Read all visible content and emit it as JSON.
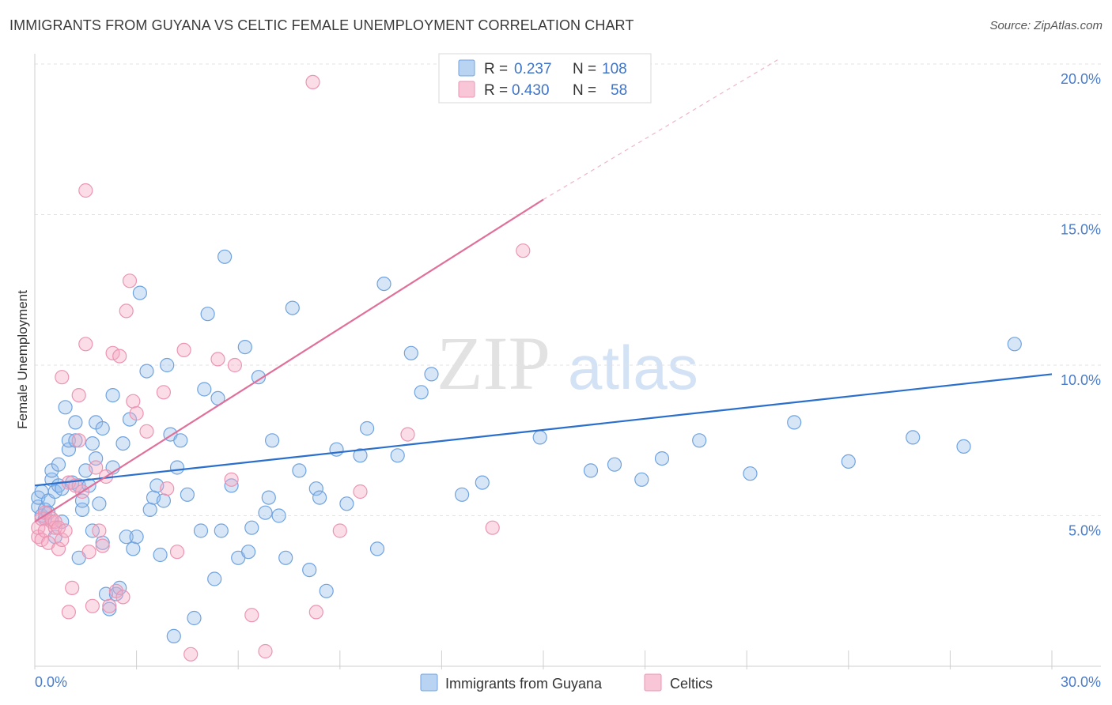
{
  "title": "IMMIGRANTS FROM GUYANA VS CELTIC FEMALE UNEMPLOYMENT CORRELATION CHART",
  "source": "Source: ZipAtlas.com",
  "watermark": {
    "zip": "ZIP",
    "atlas": "atlas"
  },
  "legend": {
    "rows": [
      {
        "r_label": "R =",
        "r_value": "0.237",
        "n_label": "N =",
        "n_value": "108"
      },
      {
        "r_label": "R =",
        "r_value": "0.430",
        "n_label": "N =",
        "n_value": "58"
      }
    ]
  },
  "bottom_legend": [
    "Immigrants from Guyana",
    "Celtics"
  ],
  "chart_data": {
    "type": "scatter",
    "title": "IMMIGRANTS FROM GUYANA VS CELTIC FEMALE UNEMPLOYMENT CORRELATION CHART",
    "xlabel": "",
    "ylabel": "Female Unemployment",
    "xlim": [
      0,
      30
    ],
    "ylim": [
      0,
      20
    ],
    "x_tick_labels": [
      {
        "value": 0,
        "label": "0.0%"
      },
      {
        "value": 30,
        "label": "30.0%"
      }
    ],
    "y_tick_labels": [
      {
        "value": 5,
        "label": "5.0%"
      },
      {
        "value": 10,
        "label": "10.0%"
      },
      {
        "value": 15,
        "label": "15.0%"
      },
      {
        "value": 20,
        "label": "20.0%"
      }
    ],
    "colors": {
      "blue": "#7fb0e8",
      "blue_line": "#2a6fcc",
      "pink": "#f2a8c0",
      "pink_line": "#e0709a"
    },
    "series": [
      {
        "name": "Immigrants from Guyana",
        "color": "blue",
        "trend": {
          "x0": 0,
          "y0": 6.0,
          "x1": 30,
          "y1": 9.7
        },
        "points": [
          [
            0.1,
            5.3
          ],
          [
            0.1,
            5.6
          ],
          [
            0.2,
            5.0
          ],
          [
            0.2,
            5.8
          ],
          [
            0.3,
            5.2
          ],
          [
            0.3,
            4.9
          ],
          [
            0.4,
            5.5
          ],
          [
            0.4,
            5.1
          ],
          [
            0.5,
            6.2
          ],
          [
            0.5,
            6.5
          ],
          [
            0.6,
            5.8
          ],
          [
            0.6,
            4.3
          ],
          [
            0.7,
            6.7
          ],
          [
            0.7,
            6.0
          ],
          [
            0.8,
            4.8
          ],
          [
            0.8,
            5.9
          ],
          [
            0.9,
            8.6
          ],
          [
            1.0,
            7.2
          ],
          [
            1.0,
            7.5
          ],
          [
            1.1,
            6.1
          ],
          [
            1.2,
            7.5
          ],
          [
            1.2,
            8.1
          ],
          [
            1.3,
            6.0
          ],
          [
            1.3,
            3.6
          ],
          [
            1.4,
            5.2
          ],
          [
            1.4,
            5.5
          ],
          [
            1.5,
            6.5
          ],
          [
            1.6,
            6.0
          ],
          [
            1.7,
            4.5
          ],
          [
            1.7,
            7.4
          ],
          [
            1.8,
            6.9
          ],
          [
            1.8,
            8.1
          ],
          [
            1.9,
            5.4
          ],
          [
            2.0,
            4.1
          ],
          [
            2.0,
            7.9
          ],
          [
            2.1,
            2.4
          ],
          [
            2.2,
            1.9
          ],
          [
            2.3,
            6.6
          ],
          [
            2.3,
            9.0
          ],
          [
            2.4,
            2.4
          ],
          [
            2.5,
            2.6
          ],
          [
            2.6,
            7.4
          ],
          [
            2.7,
            4.3
          ],
          [
            2.8,
            8.2
          ],
          [
            2.9,
            3.9
          ],
          [
            3.0,
            4.3
          ],
          [
            3.1,
            12.4
          ],
          [
            3.3,
            9.8
          ],
          [
            3.4,
            5.2
          ],
          [
            3.5,
            5.6
          ],
          [
            3.6,
            6.0
          ],
          [
            3.7,
            3.7
          ],
          [
            3.8,
            5.5
          ],
          [
            3.9,
            10.0
          ],
          [
            4.0,
            7.7
          ],
          [
            4.1,
            1.0
          ],
          [
            4.2,
            6.6
          ],
          [
            4.3,
            7.5
          ],
          [
            4.5,
            5.7
          ],
          [
            4.7,
            1.6
          ],
          [
            4.9,
            4.5
          ],
          [
            5.0,
            9.2
          ],
          [
            5.1,
            11.7
          ],
          [
            5.3,
            2.9
          ],
          [
            5.4,
            8.9
          ],
          [
            5.5,
            4.5
          ],
          [
            5.6,
            13.6
          ],
          [
            5.8,
            6.0
          ],
          [
            6.0,
            3.6
          ],
          [
            6.2,
            10.6
          ],
          [
            6.3,
            3.8
          ],
          [
            6.4,
            4.6
          ],
          [
            6.6,
            9.6
          ],
          [
            6.8,
            5.1
          ],
          [
            6.9,
            5.6
          ],
          [
            7.0,
            7.5
          ],
          [
            7.2,
            5.0
          ],
          [
            7.4,
            3.6
          ],
          [
            7.6,
            11.9
          ],
          [
            7.8,
            6.5
          ],
          [
            8.1,
            3.2
          ],
          [
            8.3,
            5.9
          ],
          [
            8.4,
            5.6
          ],
          [
            8.6,
            2.5
          ],
          [
            8.9,
            7.2
          ],
          [
            9.2,
            5.4
          ],
          [
            9.6,
            7.0
          ],
          [
            9.8,
            7.9
          ],
          [
            10.1,
            3.9
          ],
          [
            10.3,
            12.7
          ],
          [
            10.7,
            7.0
          ],
          [
            11.1,
            10.4
          ],
          [
            11.4,
            9.1
          ],
          [
            11.7,
            9.7
          ],
          [
            12.6,
            5.7
          ],
          [
            13.2,
            6.1
          ],
          [
            14.9,
            7.6
          ],
          [
            16.4,
            6.5
          ],
          [
            17.1,
            6.7
          ],
          [
            17.9,
            6.2
          ],
          [
            18.5,
            6.9
          ],
          [
            19.6,
            7.5
          ],
          [
            21.1,
            6.4
          ],
          [
            22.4,
            8.1
          ],
          [
            24.0,
            6.8
          ],
          [
            25.9,
            7.6
          ],
          [
            27.4,
            7.3
          ],
          [
            28.9,
            10.7
          ]
        ]
      },
      {
        "name": "Celtics",
        "color": "pink",
        "trend": {
          "x0": 0,
          "y0": 4.8,
          "x1": 15,
          "y1": 15.5,
          "dash_x1": 22,
          "dash_y1": 20.2
        },
        "points": [
          [
            0.1,
            4.3
          ],
          [
            0.1,
            4.6
          ],
          [
            0.2,
            4.9
          ],
          [
            0.2,
            4.2
          ],
          [
            0.3,
            5.1
          ],
          [
            0.3,
            4.5
          ],
          [
            0.4,
            4.1
          ],
          [
            0.5,
            4.8
          ],
          [
            0.5,
            4.9
          ],
          [
            0.6,
            4.6
          ],
          [
            0.6,
            4.8
          ],
          [
            0.7,
            3.9
          ],
          [
            0.7,
            4.6
          ],
          [
            0.8,
            4.2
          ],
          [
            0.8,
            9.6
          ],
          [
            0.9,
            4.5
          ],
          [
            1.0,
            6.1
          ],
          [
            1.0,
            1.8
          ],
          [
            1.1,
            2.6
          ],
          [
            1.2,
            6.0
          ],
          [
            1.3,
            7.5
          ],
          [
            1.3,
            9.0
          ],
          [
            1.4,
            5.8
          ],
          [
            1.5,
            10.7
          ],
          [
            1.5,
            15.8
          ],
          [
            1.6,
            3.8
          ],
          [
            1.7,
            2.0
          ],
          [
            1.8,
            6.6
          ],
          [
            1.9,
            4.5
          ],
          [
            2.0,
            4.0
          ],
          [
            2.1,
            6.3
          ],
          [
            2.2,
            2.0
          ],
          [
            2.3,
            10.4
          ],
          [
            2.4,
            2.5
          ],
          [
            2.5,
            10.3
          ],
          [
            2.6,
            2.3
          ],
          [
            2.7,
            11.8
          ],
          [
            2.8,
            12.8
          ],
          [
            2.9,
            8.8
          ],
          [
            3.0,
            8.4
          ],
          [
            3.3,
            7.8
          ],
          [
            3.8,
            9.1
          ],
          [
            3.9,
            5.9
          ],
          [
            4.2,
            3.8
          ],
          [
            4.4,
            10.5
          ],
          [
            4.6,
            0.4
          ],
          [
            5.4,
            10.2
          ],
          [
            5.8,
            6.2
          ],
          [
            5.9,
            10.0
          ],
          [
            6.4,
            1.7
          ],
          [
            6.8,
            0.5
          ],
          [
            8.3,
            1.8
          ],
          [
            9.0,
            4.5
          ],
          [
            9.6,
            5.8
          ],
          [
            11.0,
            7.7
          ],
          [
            13.5,
            4.6
          ],
          [
            14.4,
            13.8
          ],
          [
            8.2,
            19.4
          ]
        ]
      }
    ]
  }
}
